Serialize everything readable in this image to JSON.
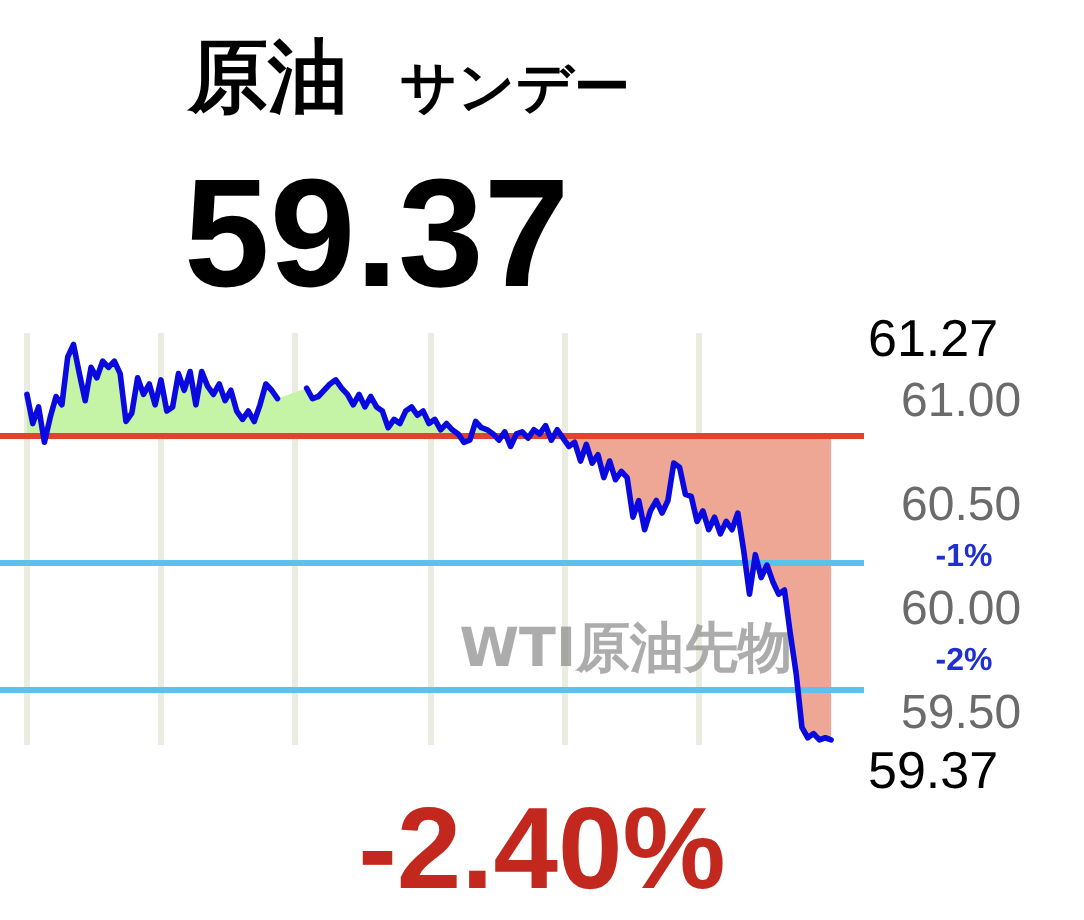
{
  "chart_data": {
    "type": "line",
    "title": "原油",
    "subtitle": "サンデー",
    "categories": [
      null,
      null,
      null,
      null,
      null,
      null,
      null,
      null,
      null,
      null,
      null,
      null,
      null,
      null,
      null,
      null,
      null,
      null,
      null,
      null,
      null,
      null,
      null,
      null,
      null,
      null,
      null,
      null,
      null,
      null,
      null,
      null,
      null,
      null,
      null,
      null,
      null,
      null,
      null,
      null,
      null,
      null,
      null,
      null,
      null,
      null,
      null,
      null,
      null,
      null,
      null,
      null,
      null,
      null,
      null,
      null,
      null,
      null,
      null,
      null,
      null,
      null,
      null,
      null,
      null,
      null,
      null,
      null,
      null,
      null,
      null,
      null,
      null,
      null,
      null,
      null,
      null,
      null,
      null,
      null,
      null,
      null,
      null,
      null,
      null,
      null,
      null,
      null,
      null,
      null,
      null,
      null,
      null,
      null,
      null,
      null,
      null,
      null,
      null,
      null,
      null,
      null,
      null,
      null,
      null,
      null,
      null,
      null,
      null,
      null,
      null,
      null,
      null,
      null,
      null,
      null,
      null,
      null,
      null,
      null,
      null,
      null,
      null,
      null,
      null,
      null,
      null,
      null,
      null,
      null,
      null,
      null,
      null,
      null,
      null,
      null,
      null,
      null,
      null
    ],
    "series": [
      {
        "color": "#0a0ae0",
        "values": [
          61.03,
          60.89,
          60.97,
          60.8,
          60.92,
          61.02,
          60.98,
          61.21,
          61.27,
          61.13,
          61.0,
          61.16,
          61.11,
          61.19,
          61.16,
          61.19,
          61.13,
          60.9,
          60.94,
          61.11,
          61.03,
          61.08,
          60.98,
          61.1,
          60.95,
          60.97,
          61.13,
          61.05,
          61.14,
          60.98,
          61.14,
          61.07,
          61.03,
          61.08,
          61.0,
          61.05,
          60.95,
          60.91,
          60.95,
          60.9,
          60.98,
          61.08,
          61.05,
          61.01,
          null,
          null,
          null,
          null,
          61.06,
          61.01,
          61.02,
          61.05,
          61.08,
          61.1,
          61.06,
          61.03,
          60.98,
          61.03,
          60.97,
          61.02,
          60.97,
          60.95,
          60.87,
          60.91,
          60.89,
          60.95,
          60.97,
          60.93,
          60.95,
          60.89,
          60.91,
          60.86,
          60.89,
          60.86,
          60.84,
          60.8,
          60.81,
          60.9,
          60.87,
          60.86,
          60.84,
          60.81,
          60.85,
          60.78,
          60.84,
          60.85,
          60.82,
          60.86,
          60.84,
          60.88,
          60.81,
          60.86,
          60.82,
          60.78,
          60.8,
          60.71,
          60.79,
          60.7,
          60.74,
          60.63,
          60.71,
          60.62,
          60.66,
          60.63,
          60.44,
          60.52,
          60.38,
          60.47,
          60.52,
          60.46,
          60.52,
          60.7,
          60.68,
          60.55,
          60.54,
          60.42,
          60.47,
          60.38,
          60.44,
          60.36,
          60.42,
          60.38,
          60.46,
          60.28,
          60.07,
          60.26,
          60.15,
          60.21,
          60.13,
          60.07,
          60.09,
          59.88,
          59.69,
          59.43,
          59.38,
          59.4,
          59.37,
          59.38,
          59.37
        ],
        "upper": [
          61.03,
          60.89,
          60.97,
          60.83,
          60.92,
          61.02,
          60.98,
          61.21,
          61.27,
          61.13,
          61.0,
          61.16,
          61.11,
          61.19,
          61.16,
          61.19,
          61.13,
          60.9,
          60.94,
          61.11,
          61.03,
          61.08,
          60.98,
          61.1,
          60.95,
          60.97,
          61.13,
          61.05,
          61.14,
          60.98,
          61.14,
          61.07,
          61.03,
          61.08,
          61.0,
          61.05,
          60.95,
          60.91,
          60.95,
          60.9,
          60.98,
          61.08,
          61.05,
          61.01,
          null,
          null,
          null,
          null,
          61.06,
          61.01,
          61.02,
          61.05,
          61.08,
          61.1,
          61.06,
          61.03,
          60.98,
          61.03,
          60.97,
          61.02,
          60.97,
          60.95,
          60.87,
          60.91,
          60.89,
          60.95,
          60.97,
          60.93,
          60.95,
          60.89,
          60.91,
          60.86,
          60.89,
          60.86,
          60.84,
          60.83,
          60.83,
          60.9,
          60.87,
          60.86,
          60.84,
          60.83,
          60.85,
          60.83,
          60.84,
          60.85,
          60.83,
          60.86,
          60.84,
          60.88,
          60.83,
          60.86,
          60.83,
          60.83,
          60.83,
          60.83,
          60.83,
          60.83,
          60.83,
          60.83,
          60.83,
          60.83,
          60.83,
          60.83,
          60.83,
          60.83,
          60.83,
          60.83,
          60.83,
          60.83,
          60.83,
          60.83,
          60.83,
          60.83,
          60.83,
          60.83,
          60.83,
          60.83,
          60.83,
          60.83,
          60.83,
          60.83,
          60.83,
          60.83,
          60.83,
          60.83,
          60.83,
          60.83,
          60.83,
          60.83,
          60.83,
          60.83,
          60.83,
          60.83,
          60.83,
          60.83,
          60.83,
          60.83,
          60.83
        ],
        "lower": [
          60.83,
          60.83,
          60.83,
          60.8,
          60.83,
          60.83,
          60.83,
          60.83,
          60.83,
          60.83,
          60.83,
          60.83,
          60.83,
          60.83,
          60.83,
          60.83,
          60.83,
          60.83,
          60.83,
          60.83,
          60.83,
          60.83,
          60.83,
          60.83,
          60.83,
          60.83,
          60.83,
          60.83,
          60.83,
          60.83,
          60.83,
          60.83,
          60.83,
          60.83,
          60.83,
          60.83,
          60.83,
          60.83,
          60.83,
          60.83,
          60.83,
          60.83,
          60.83,
          60.83,
          null,
          null,
          null,
          null,
          60.83,
          60.83,
          60.83,
          60.83,
          60.83,
          60.83,
          60.83,
          60.83,
          60.83,
          60.83,
          60.83,
          60.83,
          60.83,
          60.83,
          60.83,
          60.83,
          60.83,
          60.83,
          60.83,
          60.83,
          60.83,
          60.83,
          60.83,
          60.83,
          60.83,
          60.83,
          60.83,
          60.8,
          60.81,
          60.83,
          60.83,
          60.83,
          60.83,
          60.81,
          60.83,
          60.78,
          60.83,
          60.83,
          60.82,
          60.83,
          60.83,
          60.83,
          60.81,
          60.83,
          60.82,
          60.78,
          60.8,
          60.71,
          60.79,
          60.7,
          60.74,
          60.63,
          60.71,
          60.62,
          60.66,
          60.63,
          60.44,
          60.52,
          60.38,
          60.47,
          60.52,
          60.46,
          60.52,
          60.7,
          60.68,
          60.55,
          60.54,
          60.42,
          60.47,
          60.38,
          60.44,
          60.36,
          60.42,
          60.38,
          60.46,
          60.28,
          60.07,
          60.26,
          60.15,
          60.21,
          60.13,
          60.07,
          60.09,
          59.88,
          59.69,
          59.43,
          59.38,
          59.4,
          59.37,
          59.38,
          59.37
        ],
        "colors": [
          "#c6f4a6",
          "#c6f4a6",
          "#c6f4a6",
          "#c6f4a6",
          "#c6f4a6",
          "#c6f4a6",
          "#c6f4a6",
          "#c6f4a6",
          "#c6f4a6",
          "#c6f4a6",
          "#c6f4a6",
          "#c6f4a6",
          "#c6f4a6",
          "#c6f4a6",
          "#c6f4a6",
          "#c6f4a6",
          "#c6f4a6",
          "#c6f4a6",
          "#c6f4a6",
          "#c6f4a6",
          "#c6f4a6",
          "#c6f4a6",
          "#c6f4a6",
          "#c6f4a6",
          "#c6f4a6",
          "#c6f4a6",
          "#c6f4a6",
          "#c6f4a6",
          "#c6f4a6",
          "#c6f4a6",
          "#c6f4a6",
          "#c6f4a6",
          "#c6f4a6",
          "#c6f4a6",
          "#c6f4a6",
          "#c6f4a6",
          "#c6f4a6",
          "#c6f4a6",
          "#c6f4a6",
          "#c6f4a6",
          "#c6f4a6",
          "#c6f4a6",
          "#c6f4a6",
          "#c6f4a6",
          null,
          null,
          null,
          null,
          "#c6f4a6",
          "#c6f4a6",
          "#c6f4a6",
          "#c6f4a6",
          "#c6f4a6",
          "#c6f4a6",
          "#c6f4a6",
          "#c6f4a6",
          "#c6f4a6",
          "#c6f4a6",
          "#c6f4a6",
          "#c6f4a6",
          "#c6f4a6",
          "#c6f4a6",
          "#c6f4a6",
          "#c6f4a6",
          "#c6f4a6",
          "#c6f4a6",
          "#c6f4a6",
          "#c6f4a6",
          "#c6f4a6",
          "#c6f4a6",
          "#c6f4a6",
          "#c6f4a6",
          "#c6f4a6",
          "#c6f4a6",
          "#c6f4a6",
          "#c6f4a6",
          "#c6f4a6",
          "#c6f4a6",
          "#c6f4a6",
          "#c6f4a6",
          "#c6f4a6",
          "#c6f4a6",
          "#c6f4a6",
          "#c6f4a6",
          "#c6f4a6",
          "#c6f4a6",
          "#c6f4a6",
          "#c6f4a6",
          "#c6f4a6",
          "#c6f4a6",
          "#c6f4a6",
          "#c6f4a6",
          "#c6f4a6",
          "#eea794",
          "#eea794",
          "#eea794",
          "#eea794",
          "#eea794",
          "#eea794",
          "#eea794",
          "#eea794",
          "#eea794",
          "#eea794",
          "#eea794",
          "#eea794",
          "#eea794",
          "#eea794",
          "#eea794",
          "#eea794",
          "#eea794",
          "#eea794",
          "#eea794",
          "#eea794",
          "#eea794",
          "#eea794",
          "#eea794",
          "#eea794",
          "#eea794",
          "#eea794",
          "#eea794",
          "#eea794",
          "#eea794",
          "#eea794",
          "#eea794",
          "#eea794",
          "#eea794",
          "#eea794",
          "#eea794",
          "#eea794",
          "#eea794",
          "#eea794",
          "#eea794",
          "#eea794",
          "#eea794",
          "#eea794",
          "#eea794",
          "#eea794",
          "#eea794",
          "#eea794"
        ]
      }
    ],
    "ylim": [
      59.35,
      61.33
    ],
    "yticks": [
      {
        "value": 59.5,
        "label": "59.50"
      },
      {
        "value": 60,
        "label": "60.00"
      },
      {
        "value": 60.5,
        "label": "60.50"
      },
      {
        "value": 61,
        "label": "61.00"
      }
    ],
    "ref_lines": [
      {
        "axis": "y",
        "value": 60.83,
        "color": "#e2432f"
      },
      {
        "axis": "y",
        "value": 60.22,
        "color": "#5cc2ec"
      },
      {
        "axis": "y",
        "value": 59.61,
        "color": "#5cc2ec"
      }
    ],
    "annotations": [
      "59.37",
      "-2.40%",
      "WTI原油先物",
      "61.27",
      "59.37",
      "-1%",
      "-2%"
    ],
    "grid": "x",
    "tick_labels": "y"
  }
}
